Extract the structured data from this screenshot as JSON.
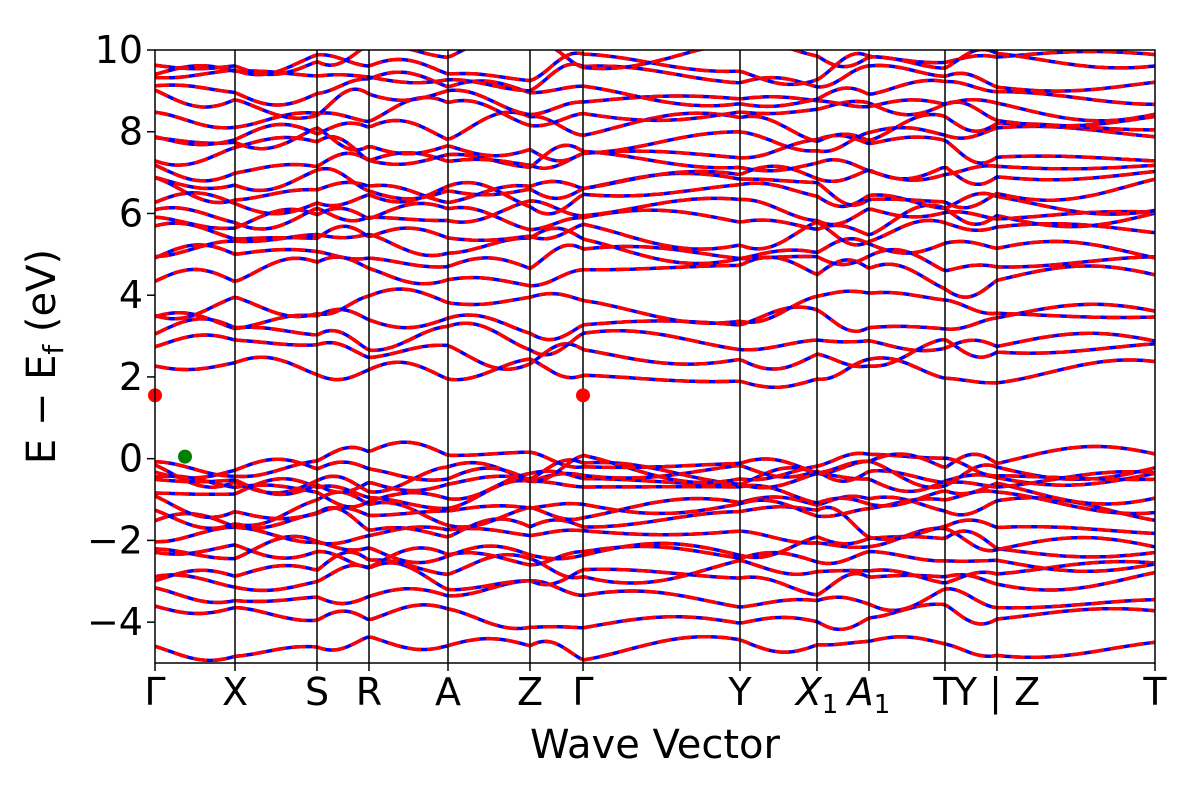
{
  "chart_data": {
    "type": "line",
    "title": "",
    "xlabel": "Wave Vector",
    "ylabel": "E − E_f (eV)",
    "ylabel_parts": {
      "main": "E − E",
      "sub": "f",
      "unit": "(eV)"
    },
    "ylim": [
      -5,
      10
    ],
    "yticks": [
      -4,
      -2,
      0,
      2,
      4,
      6,
      8,
      10
    ],
    "ytick_labels": [
      "−4",
      "−2",
      "0",
      "2",
      "4",
      "6",
      "8",
      "10"
    ],
    "kpath_labels": [
      {
        "text": "Γ",
        "sub": ""
      },
      {
        "text": "X",
        "sub": ""
      },
      {
        "text": "S",
        "sub": ""
      },
      {
        "text": "R",
        "sub": ""
      },
      {
        "text": "A",
        "sub": ""
      },
      {
        "text": "Z",
        "sub": ""
      },
      {
        "text": "Γ",
        "sub": ""
      },
      {
        "text": "Y",
        "sub": ""
      },
      {
        "text": "X",
        "sub": "1"
      },
      {
        "text": "A",
        "sub": "1"
      },
      {
        "text": "T",
        "sub": ""
      },
      {
        "text": "Y | Z",
        "sub": ""
      },
      {
        "text": "T",
        "sub": ""
      }
    ],
    "kpath_positions": [
      0.0,
      0.08,
      0.162,
      0.214,
      0.293,
      0.375,
      0.428,
      0.585,
      0.662,
      0.714,
      0.79,
      0.842,
      1.0
    ],
    "series": [
      {
        "name": "",
        "color": "#ff0000"
      },
      {
        "name": "",
        "color": "#0000ff"
      }
    ],
    "conduction_band_minimum": [
      {
        "x": 0.0,
        "y": 1.55,
        "color": "#ff0000"
      },
      {
        "x": 0.428,
        "y": 1.55,
        "color": "#ff0000"
      }
    ],
    "valence_band_maximum": {
      "x": 0.03,
      "y": 0.05,
      "color": "#008000"
    },
    "grid": false
  }
}
